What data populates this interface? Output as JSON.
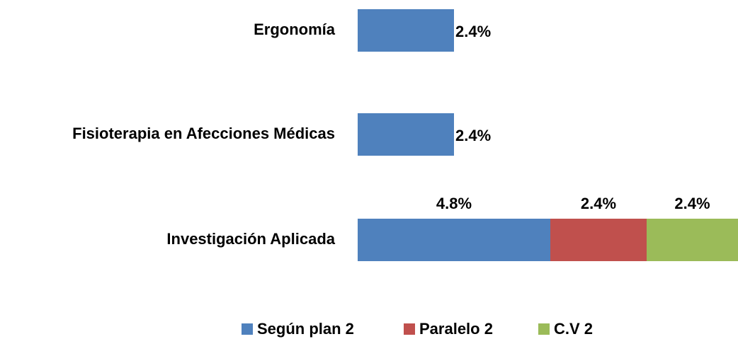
{
  "chart_data": {
    "type": "bar",
    "orientation": "horizontal",
    "stacked": true,
    "categories": [
      "Ergonomía",
      "Fisioterapia en Afecciones Médicas",
      "Investigación Aplicada"
    ],
    "series": [
      {
        "name": "Según plan 2",
        "color": "#4f81bd",
        "values": [
          2.4,
          2.4,
          4.8
        ],
        "value_labels": [
          "2.4%",
          "2.4%",
          "4.8%"
        ]
      },
      {
        "name": "Paralelo 2",
        "color": "#c0504d",
        "values": [
          null,
          null,
          2.4
        ],
        "value_labels": [
          null,
          null,
          "2.4%"
        ]
      },
      {
        "name": "C.V 2",
        "color": "#9bbb59",
        "values": [
          null,
          null,
          2.4
        ],
        "value_labels": [
          null,
          null,
          "2.4%"
        ]
      }
    ],
    "legend": "bottom"
  }
}
